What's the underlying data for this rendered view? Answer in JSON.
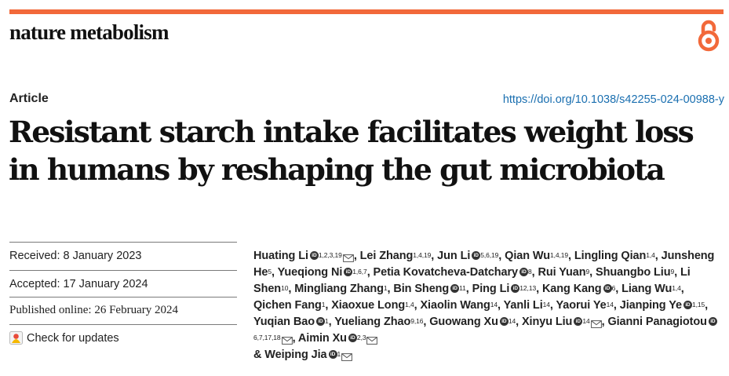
{
  "journal": {
    "name": "nature metabolism",
    "accent_color": "#f2693a",
    "open_access_icon": "open-access-lock-icon"
  },
  "article": {
    "type_label": "Article",
    "doi": "https://doi.org/10.1038/s42255-024-00988-y",
    "title_line1": "Resistant starch intake facilitates weight loss",
    "title_line2": "in humans by reshaping the gut microbiota"
  },
  "dates": {
    "received": "Received: 8 January 2023",
    "accepted": "Accepted: 17 January 2024",
    "published": "Published online: 26 February 2024"
  },
  "check_updates": {
    "label": "Check for updates",
    "icon": "check-for-updates-icon"
  },
  "authors": [
    {
      "name": "Huating Li",
      "sup": "1,2,3,19",
      "orcid": true,
      "email": true,
      "sep": ", "
    },
    {
      "name": "Lei Zhang",
      "sup": "1,4,19",
      "orcid": false,
      "email": false,
      "sep": ", "
    },
    {
      "name": "Jun Li",
      "sup": "5,6,19",
      "orcid": true,
      "email": false,
      "sep": ", "
    },
    {
      "name": "Qian Wu",
      "sup": "1,4,19",
      "orcid": false,
      "email": false,
      "sep": ", "
    },
    {
      "name": "Lingling Qian",
      "sup": "1,4",
      "orcid": false,
      "email": false,
      "sep": ", "
    },
    {
      "name": "Junsheng He",
      "sup": "5",
      "orcid": false,
      "email": false,
      "sep": ", "
    },
    {
      "name": "Yueqiong Ni",
      "sup": "1,6,7",
      "orcid": true,
      "email": false,
      "sep": ", "
    },
    {
      "name": "Petia Kovatcheva-Datchary",
      "sup": "8",
      "orcid": true,
      "email": false,
      "sep": ", "
    },
    {
      "name": "Rui Yuan",
      "sup": "9",
      "orcid": false,
      "email": false,
      "sep": ", "
    },
    {
      "name": "Shuangbo Liu",
      "sup": "9",
      "orcid": false,
      "email": false,
      "sep": ", "
    },
    {
      "name": "Li Shen",
      "sup": "10",
      "orcid": false,
      "email": false,
      "sep": ", "
    },
    {
      "name": "Mingliang Zhang",
      "sup": "1",
      "orcid": false,
      "email": false,
      "sep": ", "
    },
    {
      "name": "Bin Sheng",
      "sup": "11",
      "orcid": true,
      "email": false,
      "sep": ", "
    },
    {
      "name": "Ping Li",
      "sup": "12,13",
      "orcid": true,
      "email": false,
      "sep": ", "
    },
    {
      "name": "Kang Kang",
      "sup": "6",
      "orcid": true,
      "email": false,
      "sep": ", "
    },
    {
      "name": "Liang Wu",
      "sup": "1,4",
      "orcid": false,
      "email": false,
      "sep": ", "
    },
    {
      "name": "Qichen Fang",
      "sup": "1",
      "orcid": false,
      "email": false,
      "sep": ", "
    },
    {
      "name": "Xiaoxue Long",
      "sup": "1,4",
      "orcid": false,
      "email": false,
      "sep": ", "
    },
    {
      "name": "Xiaolin Wang",
      "sup": "14",
      "orcid": false,
      "email": false,
      "sep": ", "
    },
    {
      "name": "Yanli Li",
      "sup": "14",
      "orcid": false,
      "email": false,
      "sep": ", "
    },
    {
      "name": "Yaorui Ye",
      "sup": "14",
      "orcid": false,
      "email": false,
      "sep": ", "
    },
    {
      "name": "Jianping Ye",
      "sup": "1,15",
      "orcid": true,
      "email": false,
      "sep": ", "
    },
    {
      "name": "Yuqian Bao",
      "sup": "1",
      "orcid": true,
      "email": false,
      "sep": ", "
    },
    {
      "name": "Yueliang Zhao",
      "sup": "9,16",
      "orcid": false,
      "email": false,
      "sep": ", "
    },
    {
      "name": "Guowang Xu",
      "sup": "14",
      "orcid": true,
      "email": false,
      "sep": ", "
    },
    {
      "name": "Xinyu Liu",
      "sup": "14",
      "orcid": true,
      "email": true,
      "sep": ", "
    },
    {
      "name": "Gianni Panagiotou",
      "sup": "6,7,17,18",
      "orcid": true,
      "email": true,
      "sep": ", "
    },
    {
      "name": "Aimin Xu",
      "sup": "2,3",
      "orcid": true,
      "email": true,
      "sep": " "
    },
    {
      "name": "& Weiping Jia",
      "sup": "1",
      "orcid": true,
      "email": true,
      "sep": ""
    }
  ]
}
